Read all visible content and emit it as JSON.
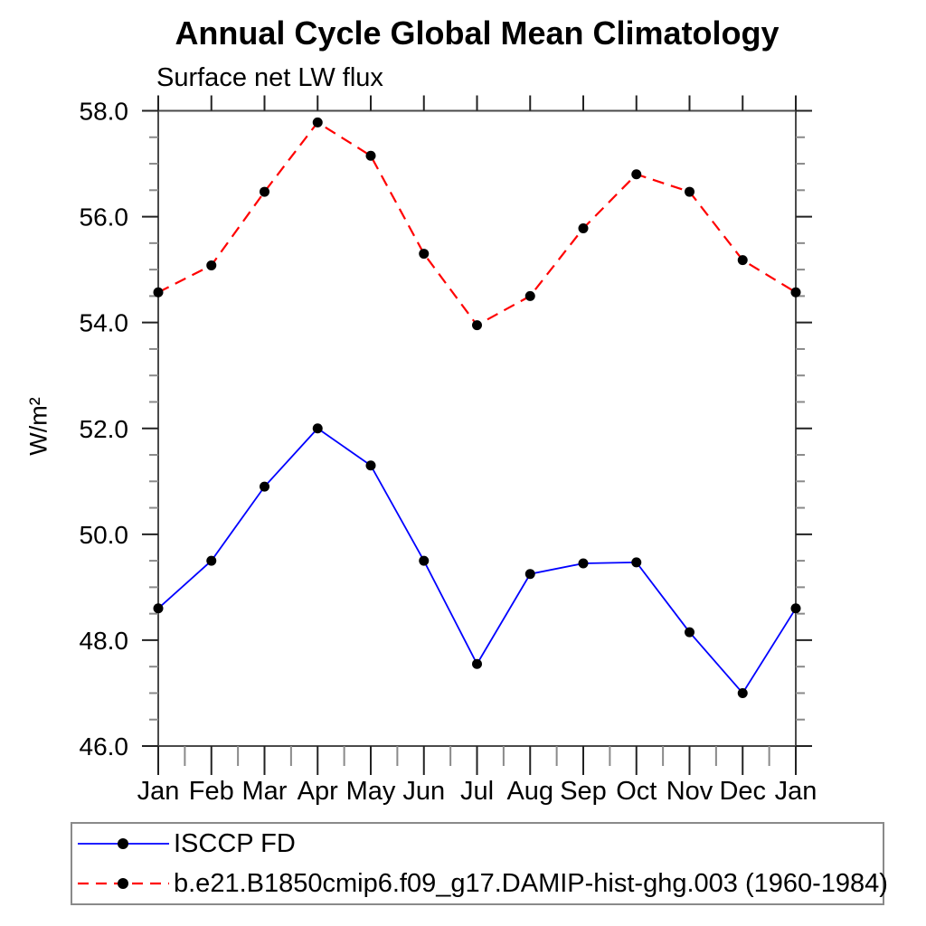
{
  "chart_data": {
    "type": "line",
    "title": "Annual Cycle Global Mean Climatology",
    "subtitle": "Surface net LW flux",
    "ylabel": "W/m²",
    "xlabel": "",
    "categories": [
      "Jan",
      "Feb",
      "Mar",
      "Apr",
      "May",
      "Jun",
      "Jul",
      "Aug",
      "Sep",
      "Oct",
      "Nov",
      "Dec",
      "Jan"
    ],
    "ylim": [
      46.0,
      58.0
    ],
    "ytick_labels": [
      "46.0",
      "48.0",
      "50.0",
      "52.0",
      "54.0",
      "56.0",
      "58.0"
    ],
    "ytick_major_step": 2.0,
    "ytick_minor_step": 0.5,
    "grid": false,
    "legend_position": "bottom-left",
    "frame_color": "#4a4a4a",
    "major_tick_color": "#222222",
    "minor_tick_color": "#8a8a8a",
    "marker_color": "#000000",
    "series": [
      {
        "name": "ISCCP FD",
        "color": "#0000ff",
        "line_style": "solid",
        "marker": "filled-circle",
        "values": [
          48.6,
          49.5,
          50.9,
          52.0,
          51.3,
          49.5,
          47.55,
          49.25,
          49.45,
          49.47,
          48.15,
          47.0,
          48.6
        ]
      },
      {
        "name": "b.e21.B1850cmip6.f09_g17.DAMIP-hist-ghg.003 (1960-1984)",
        "color": "#ff0000",
        "line_style": "dashed",
        "marker": "filled-circle",
        "values": [
          54.57,
          55.08,
          56.47,
          57.78,
          57.15,
          55.3,
          53.95,
          54.5,
          55.78,
          56.8,
          56.47,
          55.18,
          54.57
        ]
      }
    ]
  }
}
